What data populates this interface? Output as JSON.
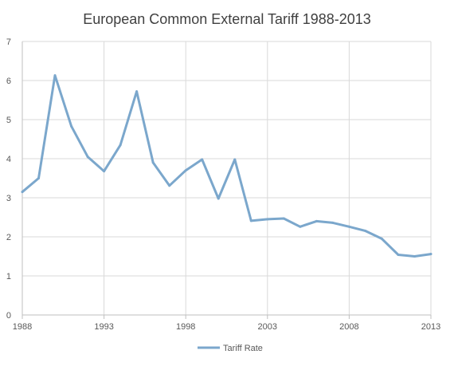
{
  "chart_data": {
    "type": "line",
    "title": "European Common External Tariff 1988-2013",
    "xlabel": "",
    "ylabel": "",
    "xlim": [
      1988,
      2013
    ],
    "ylim": [
      0,
      7
    ],
    "x_ticks": [
      1988,
      1993,
      1998,
      2003,
      2008,
      2013
    ],
    "y_ticks": [
      0,
      1,
      2,
      3,
      4,
      5,
      6,
      7
    ],
    "grid": true,
    "legend_position": "bottom",
    "series": [
      {
        "name": "Tariff Rate",
        "color": "#7ba7cc",
        "x": [
          1988,
          1989,
          1990,
          1991,
          1992,
          1993,
          1994,
          1995,
          1996,
          1997,
          1998,
          1999,
          2000,
          2001,
          2002,
          2003,
          2004,
          2005,
          2006,
          2007,
          2008,
          2009,
          2010,
          2011,
          2012,
          2013
        ],
        "y": [
          3.15,
          3.5,
          6.13,
          4.83,
          4.05,
          3.68,
          4.35,
          5.72,
          3.9,
          3.31,
          3.7,
          3.98,
          2.98,
          3.98,
          2.41,
          2.45,
          2.47,
          2.26,
          2.4,
          2.36,
          2.26,
          2.15,
          1.95,
          1.54,
          1.5,
          1.56
        ]
      }
    ]
  }
}
